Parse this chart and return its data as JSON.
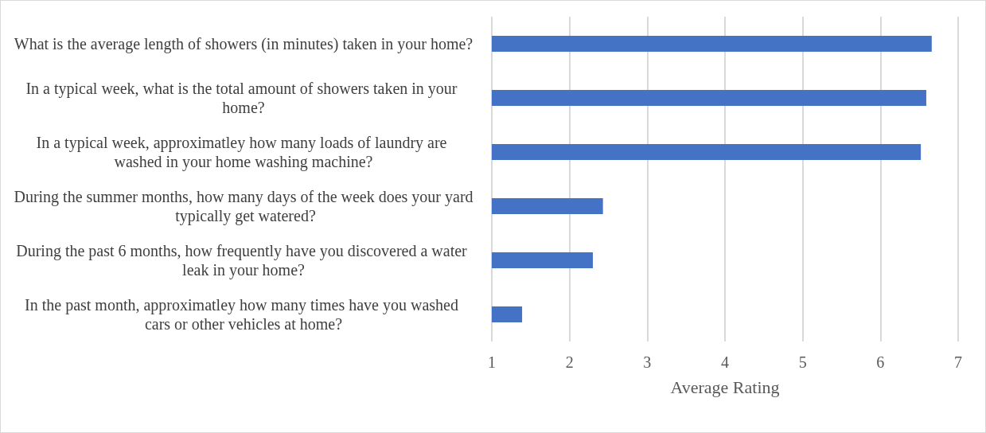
{
  "chart_data": {
    "type": "bar",
    "orientation": "horizontal",
    "xlabel": "Average Rating",
    "categories": [
      "What is the average length of showers (in minutes) taken in your home?",
      "In a typical week, what is the total amount of showers taken in your home?",
      "In a typical week, approximatley how many loads of laundry are washed in your home washing machine?",
      "During the summer months, how many days of the week does your yard typically get watered?",
      "During the past 6 months, how frequently have you discovered a water leak in your home?",
      "In the past month, approximatley how many times have you washed cars or other vehicles at home?"
    ],
    "values": [
      6.66,
      6.59,
      6.52,
      2.43,
      2.3,
      1.39
    ],
    "color": "#4472c4",
    "xlim": [
      1,
      7
    ],
    "xticks": [
      1,
      2,
      3,
      4,
      5,
      6,
      7
    ],
    "grid": "x"
  }
}
